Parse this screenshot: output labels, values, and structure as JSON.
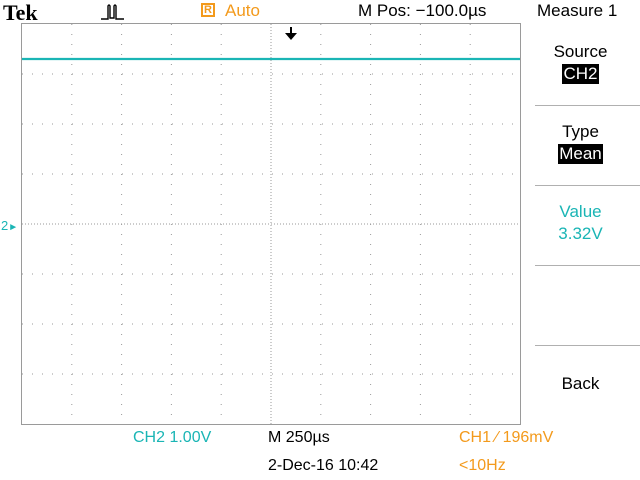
{
  "header": {
    "brand": "Tek",
    "acquisition_icon": "pulse-waveform-icon",
    "trigger_badge": "R",
    "trigger_mode": "Auto",
    "position_readout": "M Pos: −100.0µs",
    "menu_title": "Measure 1"
  },
  "side_menu": {
    "source_label": "Source",
    "source_value": "CH2",
    "type_label": "Type",
    "type_value": "Mean",
    "value_label": "Value",
    "value_reading": "3.32V",
    "back_label": "Back"
  },
  "graticule": {
    "channel_marker": "2",
    "trace_level_div": 3.3,
    "divisions_x": 10,
    "divisions_y": 8,
    "trace_color": "#1ab5b5"
  },
  "footer": {
    "ch2_scale": "CH2  1.00V",
    "timebase": "M 250µs",
    "trigger_readout": "CH1 ∕ 196mV",
    "datetime": "2-Dec-16 10:42",
    "frequency": "<10Hz"
  },
  "colors": {
    "ch1": "#f39a1c",
    "ch2": "#1ab5b5"
  }
}
